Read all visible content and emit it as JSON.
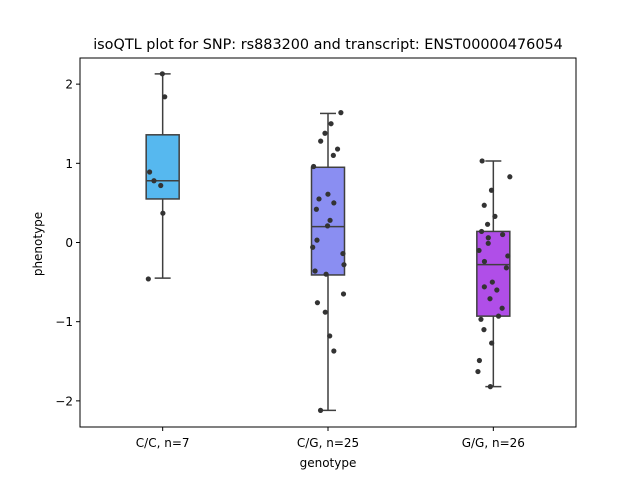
{
  "chart_data": {
    "type": "box",
    "title": "isoQTL plot for SNP: rs883200 and transcript: ENST00000476054",
    "xlabel": "genotype",
    "ylabel": "phenotype",
    "ylim": [
      -2.33,
      2.33
    ],
    "yticks": [
      2,
      1,
      0,
      -1,
      -2
    ],
    "ytick_labels": [
      "2",
      "1",
      "0",
      "−1",
      "−2"
    ],
    "grid": false,
    "groups": [
      {
        "label": "C/C, n=7",
        "color": "#56b8ef",
        "whisker_low": -0.45,
        "q1": 0.55,
        "median": 0.78,
        "q3": 1.36,
        "whisker_high": 2.13,
        "points": [
          2.13,
          1.84,
          0.89,
          0.78,
          0.72,
          0.37,
          -0.46
        ]
      },
      {
        "label": "C/G, n=25",
        "color": "#8a8ef2",
        "whisker_low": -2.12,
        "q1": -0.41,
        "median": 0.2,
        "q3": 0.95,
        "whisker_high": 1.63,
        "points": [
          1.64,
          1.5,
          1.38,
          1.28,
          1.18,
          1.1,
          0.96,
          0.61,
          0.55,
          0.5,
          0.42,
          0.28,
          0.21,
          0.03,
          -0.06,
          -0.14,
          -0.28,
          -0.36,
          -0.4,
          -0.65,
          -0.76,
          -0.88,
          -1.18,
          -1.37,
          -2.12
        ]
      },
      {
        "label": "G/G, n=26",
        "color": "#b04ee8",
        "whisker_low": -1.82,
        "q1": -0.93,
        "median": -0.28,
        "q3": 0.14,
        "whisker_high": 1.03,
        "points": [
          1.03,
          0.83,
          0.66,
          0.47,
          0.33,
          0.23,
          0.14,
          0.1,
          0.06,
          -0.01,
          -0.1,
          -0.17,
          -0.24,
          -0.32,
          -0.5,
          -0.56,
          -0.6,
          -0.71,
          -0.83,
          -0.93,
          -0.97,
          -1.1,
          -1.27,
          -1.49,
          -1.63,
          -1.82
        ]
      }
    ]
  }
}
